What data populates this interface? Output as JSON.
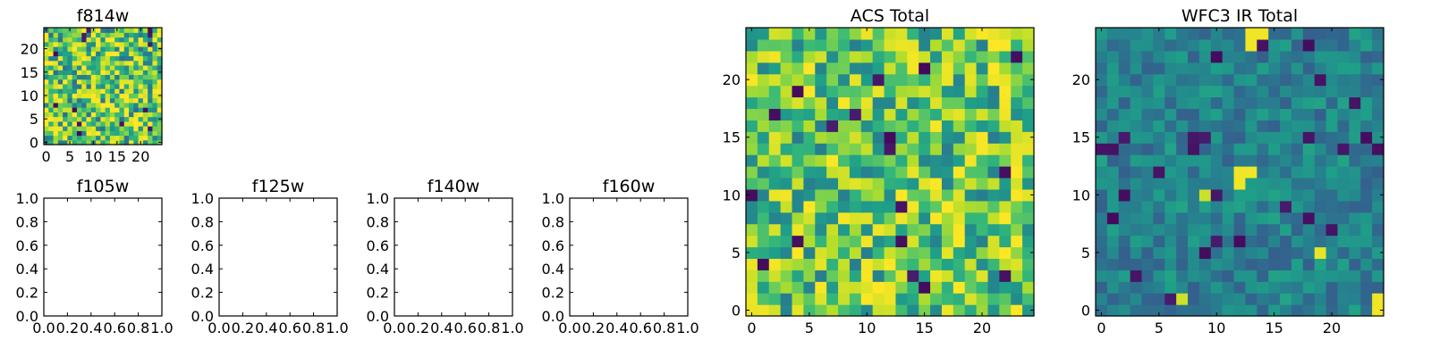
{
  "colormap": "viridis",
  "chart_data": [
    {
      "id": "f814w",
      "type": "heatmap",
      "title": "f814w",
      "size": 25,
      "xlim": [
        -0.5,
        24.5
      ],
      "ylim": [
        -0.5,
        24.5
      ],
      "xticks": [
        0,
        5,
        10,
        15,
        20
      ],
      "yticks": [
        0,
        5,
        10,
        15,
        20
      ],
      "value_range": [
        0,
        1
      ],
      "seed": 11,
      "mean": 0.72,
      "spread": 0.36,
      "outlier_rate": 0.03,
      "bright_rate": 0.1
    },
    {
      "id": "f105w",
      "type": "heatmap",
      "title": "f105w",
      "empty": true,
      "xlim": [
        0,
        1
      ],
      "ylim": [
        0,
        1
      ],
      "xticks": [
        "0.0",
        "0.2",
        "0.4",
        "0.6",
        "0.8",
        "1.0"
      ],
      "yticks": [
        "0.0",
        "0.2",
        "0.4",
        "0.6",
        "0.8",
        "1.0"
      ]
    },
    {
      "id": "f125w",
      "type": "heatmap",
      "title": "f125w",
      "empty": true,
      "xlim": [
        0,
        1
      ],
      "ylim": [
        0,
        1
      ],
      "xticks": [
        "0.0",
        "0.2",
        "0.4",
        "0.6",
        "0.8",
        "1.0"
      ],
      "yticks": [
        "0.0",
        "0.2",
        "0.4",
        "0.6",
        "0.8",
        "1.0"
      ]
    },
    {
      "id": "f140w",
      "type": "heatmap",
      "title": "f140w",
      "empty": true,
      "xlim": [
        0,
        1
      ],
      "ylim": [
        0,
        1
      ],
      "xticks": [
        "0.0",
        "0.2",
        "0.4",
        "0.6",
        "0.8",
        "1.0"
      ],
      "yticks": [
        "0.0",
        "0.2",
        "0.4",
        "0.6",
        "0.8",
        "1.0"
      ]
    },
    {
      "id": "f160w",
      "type": "heatmap",
      "title": "f160w",
      "empty": true,
      "xlim": [
        0,
        1
      ],
      "ylim": [
        0,
        1
      ],
      "xticks": [
        "0.0",
        "0.2",
        "0.4",
        "0.6",
        "0.8",
        "1.0"
      ],
      "yticks": [
        "0.0",
        "0.2",
        "0.4",
        "0.6",
        "0.8",
        "1.0"
      ]
    },
    {
      "id": "acs_total",
      "type": "heatmap",
      "title": "ACS Total",
      "size": 25,
      "xlim": [
        -0.5,
        24.5
      ],
      "ylim": [
        -0.5,
        24.5
      ],
      "xticks": [
        0,
        5,
        10,
        15,
        20
      ],
      "yticks": [
        0,
        5,
        10,
        15,
        20
      ],
      "value_range": [
        0,
        1
      ],
      "seed": 7,
      "mean": 0.72,
      "spread": 0.3,
      "outlier_rate": 0.025,
      "bright_rate": 0.1
    },
    {
      "id": "wfc3_ir_total",
      "type": "heatmap",
      "title": "WFC3 IR Total",
      "size": 25,
      "xlim": [
        -0.5,
        24.5
      ],
      "ylim": [
        -0.5,
        24.5
      ],
      "xticks": [
        0,
        5,
        10,
        15,
        20
      ],
      "yticks": [
        0,
        5,
        10,
        15,
        20
      ],
      "value_range": [
        0,
        1
      ],
      "seed": 23,
      "mean": 0.44,
      "spread": 0.14,
      "outlier_rate": 0.04,
      "bright_rate": 0.005,
      "bright_blobs": [
        {
          "row": 24,
          "col": 13
        },
        {
          "row": 24,
          "col": 14
        },
        {
          "row": 23,
          "col": 13
        },
        {
          "row": 12,
          "col": 12
        },
        {
          "row": 11,
          "col": 12
        },
        {
          "row": 12,
          "col": 13
        },
        {
          "row": 1,
          "col": 24
        },
        {
          "row": 0,
          "col": 24
        }
      ]
    }
  ]
}
